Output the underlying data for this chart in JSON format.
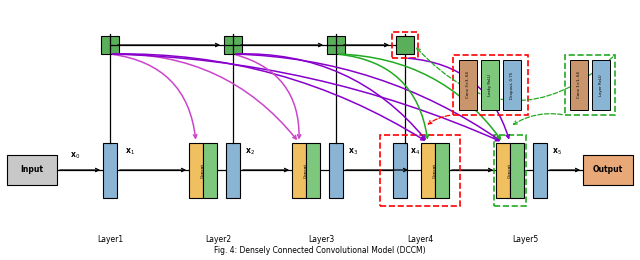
{
  "title": "Fig. 4: Densely Connected Convolutional Model (DCCM)",
  "colors": {
    "blue_block": "#8ab4d4",
    "green_block": "#7ec87e",
    "yellow_block": "#f0c060",
    "gray_input": "#c8c8c8",
    "orange_output": "#e8a878",
    "skip_green": "#5ab05a",
    "brown_block": "#c8956c",
    "background": "#ffffff",
    "magenta": "#cc44cc",
    "purple": "#8800cc",
    "green_arrow": "#22aa22"
  },
  "layer_labels": [
    "Layer1",
    "Layer2",
    "Layer3",
    "Layer4",
    "Layer5"
  ],
  "caption": "Fig. 4: Densely Connected Convolutional Model (DCCM)"
}
